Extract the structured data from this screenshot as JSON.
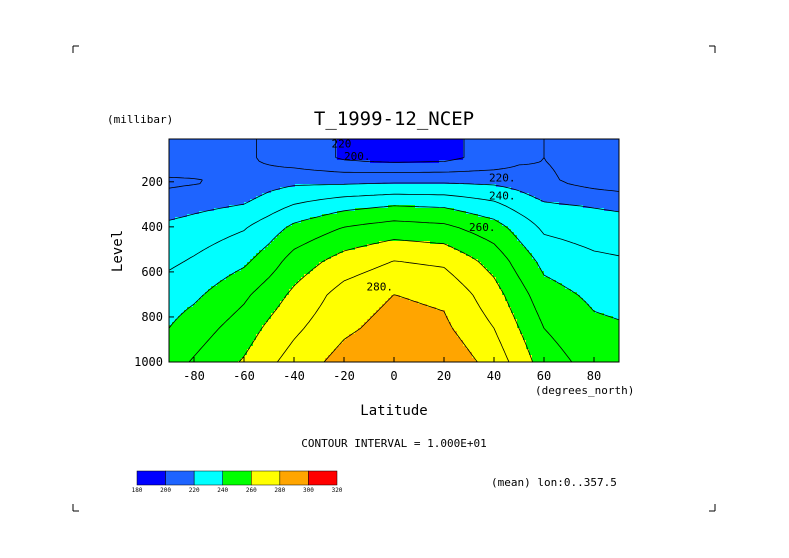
{
  "chart_data": {
    "type": "heatmap",
    "subtype": "filled-contour",
    "title": "T_1999-12_NCEP",
    "xlabel": "Latitude",
    "x_units": "(degrees_north)",
    "ylabel": "Level",
    "y_units": "(millibar)",
    "xlim": [
      -90,
      90
    ],
    "ylim": [
      1000,
      10
    ],
    "y_inverted": true,
    "x_ticks": [
      -80,
      -60,
      -40,
      -20,
      0,
      20,
      40,
      60,
      80
    ],
    "y_ticks": [
      1000,
      800,
      600,
      400,
      200
    ],
    "contour_interval_text": "CONTOUR INTERVAL = 1.000E+01",
    "averaging_text": "(mean) lon:0..357.5",
    "contour_labels": [
      "220",
      "200.",
      "220.",
      "240.",
      "260.",
      "280."
    ],
    "colorbar": {
      "bounds": [
        180,
        200,
        220,
        240,
        260,
        280,
        300,
        320
      ],
      "colors": [
        "#0000ff",
        "#1e64ff",
        "#00ffff",
        "#00ff00",
        "#ffff00",
        "#ffa500",
        "#ff0000"
      ]
    },
    "field": {
      "latitudes": [
        -90,
        -80,
        -60,
        -50,
        -40,
        -20,
        0,
        20,
        40,
        50,
        60,
        80,
        90
      ],
      "levels": [
        1000,
        850,
        700,
        550,
        400,
        300,
        200,
        100
      ],
      "values": [
        [
          246,
          251,
          261,
          268,
          274,
          284,
          290,
          288,
          276,
          266,
          255,
          246,
          245
        ],
        [
          240,
          245,
          255,
          262,
          268,
          278,
          284,
          282,
          270,
          260,
          250,
          242,
          241
        ],
        [
          235,
          238,
          248,
          255,
          262,
          274,
          280,
          278,
          264,
          254,
          244,
          238,
          237
        ],
        [
          228,
          231,
          238,
          245,
          254,
          264,
          270,
          268,
          256,
          246,
          237,
          232,
          231
        ],
        [
          222,
          224,
          229,
          235,
          242,
          250,
          254,
          252,
          244,
          236,
          228,
          225,
          224
        ],
        [
          215,
          217,
          220,
          225,
          230,
          236,
          239,
          238,
          232,
          226,
          221,
          219,
          218
        ],
        [
          208,
          209,
          212,
          216,
          218,
          218,
          219,
          219,
          218,
          216,
          212,
          206,
          204
        ],
        [
          218,
          216,
          212,
          208,
          205,
          199,
          197,
          198,
          203,
          208,
          210,
          206,
          200
        ]
      ]
    }
  }
}
